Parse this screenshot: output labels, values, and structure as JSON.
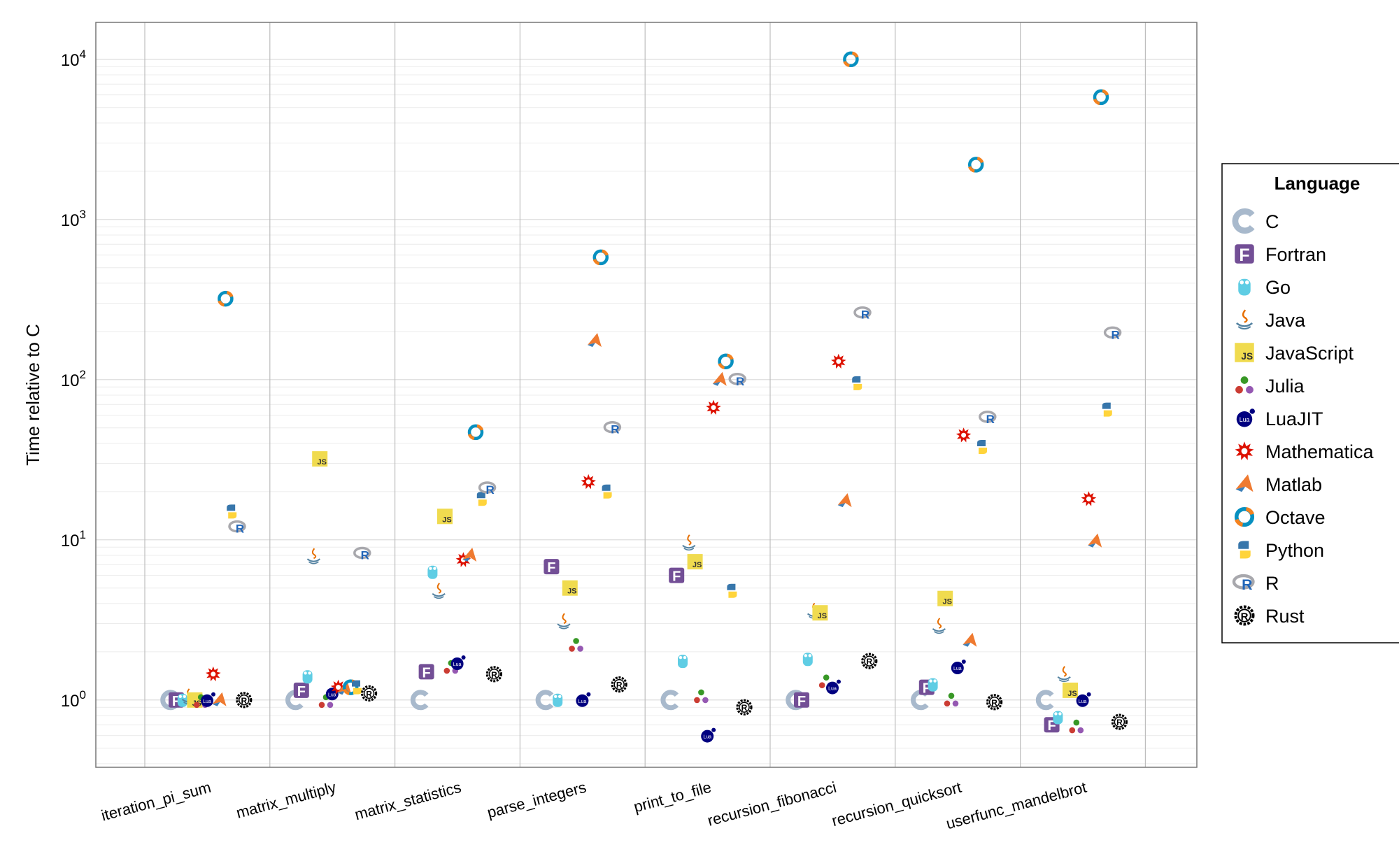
{
  "chart_data": {
    "type": "scatter",
    "title": "",
    "xlabel": "",
    "ylabel": "Time relative to C",
    "yscale": "log10",
    "ylim": [
      0.38,
      17000
    ],
    "yticks": [
      {
        "value": 1,
        "base": "10",
        "exp": "0"
      },
      {
        "value": 10,
        "base": "10",
        "exp": "1"
      },
      {
        "value": 100,
        "base": "10",
        "exp": "2"
      },
      {
        "value": 1000,
        "base": "10",
        "exp": "3"
      },
      {
        "value": 10000,
        "base": "10",
        "exp": "4"
      }
    ],
    "grid": true,
    "legend_position": "right",
    "legend_title": "Language",
    "categories": [
      "iteration_pi_sum",
      "matrix_multiply",
      "matrix_statistics",
      "parse_integers",
      "print_to_file",
      "recursion_fibonacci",
      "recursion_quicksort",
      "userfunc_mandelbrot"
    ],
    "series": [
      {
        "name": "C",
        "icon": "c-logo-icon",
        "color": "#a8b9cc",
        "values": [
          1,
          1,
          1,
          1,
          1,
          1,
          1,
          1
        ]
      },
      {
        "name": "Fortran",
        "icon": "fortran-logo-icon",
        "color": "#734f96",
        "values": [
          1,
          1.15,
          1.5,
          6.8,
          6,
          1,
          1.2,
          0.7
        ]
      },
      {
        "name": "Go",
        "icon": "go-gopher-icon",
        "color": "#5fcde4",
        "values": [
          1,
          1.4,
          6.3,
          1,
          1.75,
          1.8,
          1.25,
          0.78
        ]
      },
      {
        "name": "Java",
        "icon": "java-cup-icon",
        "color": "#e76f00",
        "values": [
          1.05,
          7.9,
          4.8,
          3.1,
          9.6,
          3.6,
          2.9,
          1.45
        ]
      },
      {
        "name": "JavaScript",
        "icon": "javascript-logo-icon",
        "color": "#f0db4f",
        "values": [
          1,
          32,
          14,
          5,
          7.3,
          3.5,
          4.3,
          1.15
        ]
      },
      {
        "name": "Julia",
        "icon": "julia-dots-icon",
        "color": "#9558b2",
        "values": [
          0.98,
          0.98,
          1.6,
          2.2,
          1.05,
          1.3,
          1,
          0.68
        ]
      },
      {
        "name": "LuaJIT",
        "icon": "luajit-logo-icon",
        "color": "#000080",
        "values": [
          1,
          1.1,
          1.7,
          1,
          0.6,
          1.2,
          1.6,
          1
        ]
      },
      {
        "name": "Mathematica",
        "icon": "mathematica-star-icon",
        "color": "#dd1100",
        "values": [
          1.45,
          1.2,
          7.5,
          23,
          67,
          130,
          45,
          18
        ]
      },
      {
        "name": "Matlab",
        "icon": "matlab-membrane-icon",
        "color": "#ef7a30",
        "values": [
          1,
          1.18,
          8,
          175,
          100,
          17.5,
          2.35,
          9.8
        ]
      },
      {
        "name": "Octave",
        "icon": "octave-ring-icon",
        "color": "#0790c0",
        "values": [
          320,
          1.2,
          47,
          580,
          130,
          10000,
          2200,
          5800
        ]
      },
      {
        "name": "Python",
        "icon": "python-snakes-icon",
        "color": "#3776ab",
        "values": [
          15,
          1.2,
          18,
          20,
          4.8,
          95,
          38,
          65
        ]
      },
      {
        "name": "R",
        "icon": "r-logo-icon",
        "color": "#2266b8",
        "values": [
          12,
          8.2,
          21,
          50,
          100,
          260,
          58,
          195
        ]
      },
      {
        "name": "Rust",
        "icon": "rust-gear-icon",
        "color": "#000000",
        "values": [
          1,
          1.1,
          1.45,
          1.25,
          0.9,
          1.75,
          0.97,
          0.73
        ]
      }
    ]
  }
}
